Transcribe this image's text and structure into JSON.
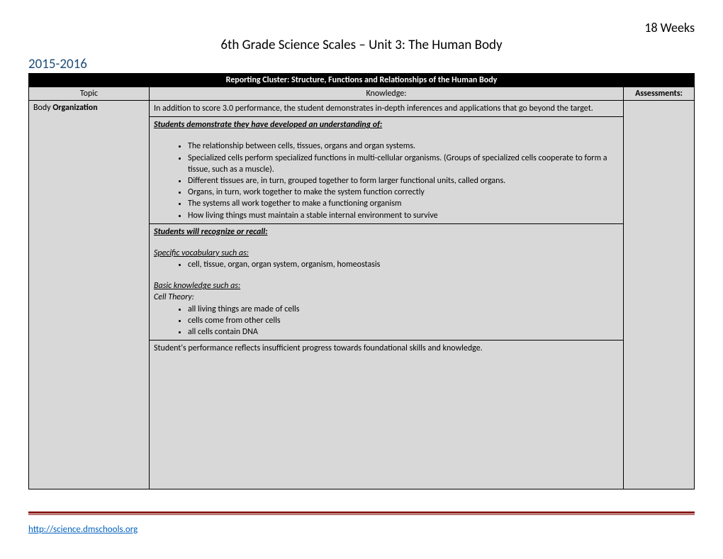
{
  "header": {
    "duration": "18 Weeks",
    "title": "6th Grade Science Scales – Unit 3:  The Human Body",
    "year": "2015-2016"
  },
  "table": {
    "cluster": "Reporting Cluster: Structure, Functions and Relationships of the Human Body",
    "columns": {
      "topic": "Topic",
      "knowledge": "Knowledge:",
      "assessments": "Assessments:"
    },
    "topic_label": "Body ",
    "topic_bold": "Organization",
    "r1_intro": "In addition to score 3.0 performance, the student demonstrates in-depth inferences and applications that go beyond the target.",
    "r2_heading": "Students demonstrate they have developed an understanding of: ",
    "r2_items": [
      "The relationship between cells, tissues, organs and organ systems.",
      "Specialized cells perform specialized functions in multi-cellular organisms.  (Groups of specialized cells cooperate to form a tissue, such as a muscle).",
      "Different tissues are, in turn, grouped together to form larger functional units, called organs.",
      "Organs, in turn, work together to make the system function correctly",
      "The systems all work together to make a functioning organism",
      "How living things must maintain a stable internal environment to survive"
    ],
    "r3_heading": "Students will recognize or recall:",
    "r3_sub1": "Specific vocabulary such as:",
    "r3_sub1_items": [
      "cell, tissue, organ, organ system, organism, homeostasis"
    ],
    "r3_sub2": "Basic knowledge such as: ",
    "r3_sub2_label": "Cell Theory:",
    "r3_sub2_items": [
      "all living things are made of cells",
      "cells come from other cells",
      "all cells contain DNA"
    ],
    "r4_text": "Student's performance reflects insufficient progress towards foundational skills and knowledge."
  },
  "footer": {
    "link": "http://science.dmschools.org"
  },
  "colors": {
    "year_color": "#1f4e79",
    "link_color": "#0563c1",
    "rule_color": "#8b1a1a",
    "row_bg": "#d8d8d8"
  }
}
